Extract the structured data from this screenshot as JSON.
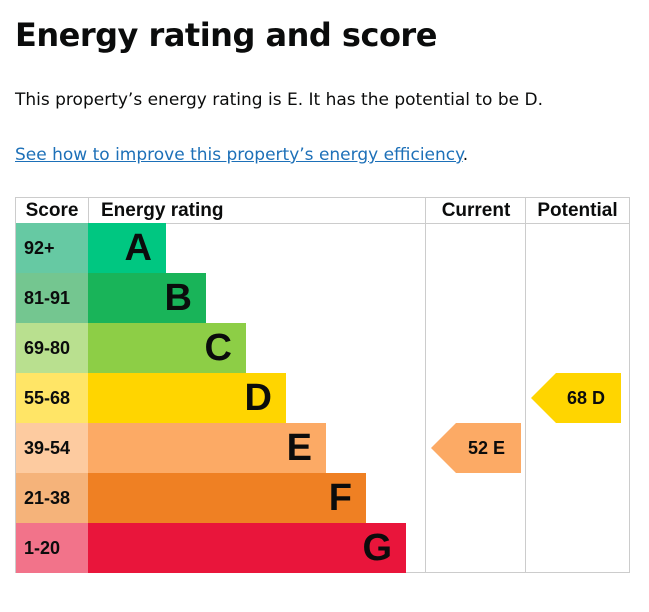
{
  "title": "Energy rating and score",
  "intro": "This property’s energy rating is E. It has the potential to be D.",
  "link": "See how to improve this property’s energy efficiency",
  "link_suffix": ".",
  "headers": {
    "score": "Score",
    "rating": "Energy rating",
    "current": "Current",
    "potential": "Potential"
  },
  "bands": [
    {
      "score": "92+",
      "letter": "A",
      "color": "#00c781",
      "light": "#66c9a3"
    },
    {
      "score": "81-91",
      "letter": "B",
      "color": "#19b459",
      "light": "#74c690"
    },
    {
      "score": "69-80",
      "letter": "C",
      "color": "#8dce46",
      "light": "#b9e08f"
    },
    {
      "score": "55-68",
      "letter": "D",
      "color": "#ffd500",
      "light": "#ffe566"
    },
    {
      "score": "39-54",
      "letter": "E",
      "color": "#fcaa65",
      "light": "#fdcba0"
    },
    {
      "score": "21-38",
      "letter": "F",
      "color": "#ef8023",
      "light": "#f5b37a"
    },
    {
      "score": "1-20",
      "letter": "G",
      "color": "#e9153b",
      "light": "#f2738a"
    }
  ],
  "current": {
    "label": "52  E",
    "score": 52,
    "band": "E",
    "color": "#fcaa65"
  },
  "potential": {
    "label": "68  D",
    "score": 68,
    "band": "D",
    "color": "#ffd500"
  }
}
